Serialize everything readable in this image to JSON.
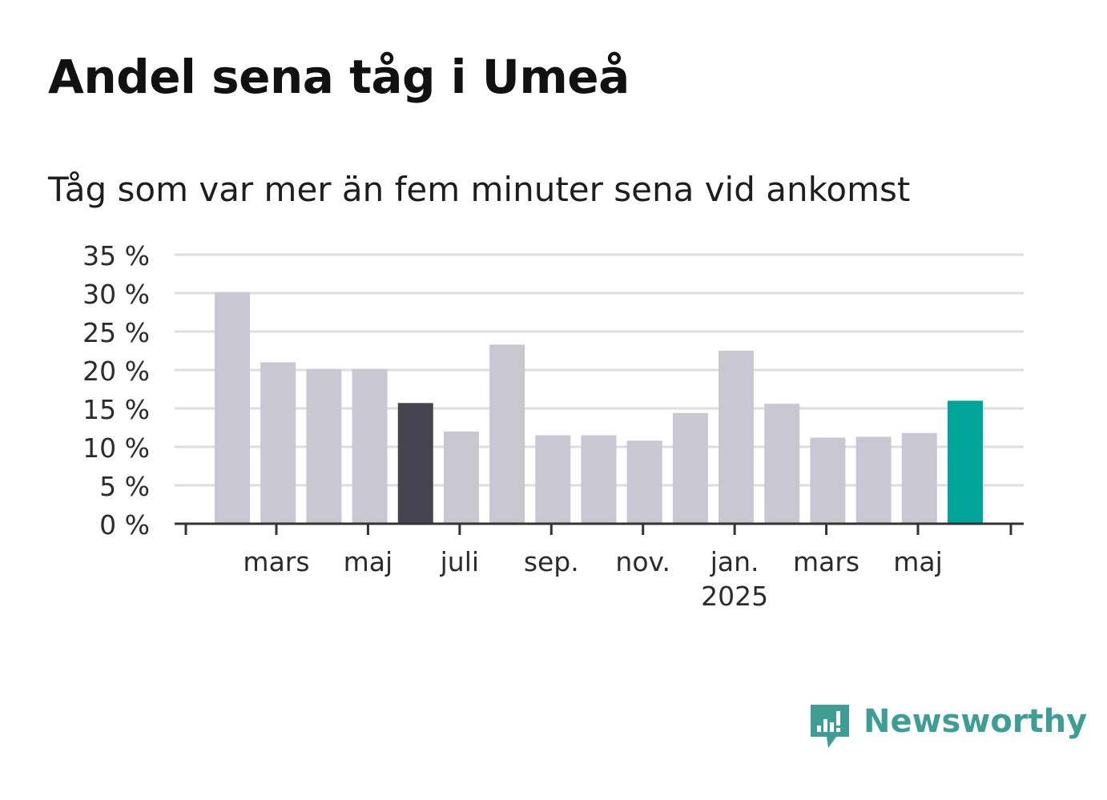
{
  "chart_data": {
    "type": "bar",
    "title": "Andel sena tåg i Umeå",
    "subtitle": "Tåg som var mer än fem minuter sena vid ankomst",
    "ylabel": "",
    "xlabel": "",
    "ylim": [
      0,
      35
    ],
    "y_ticks": [
      "0 %",
      "5 %",
      "10 %",
      "15 %",
      "20 %",
      "25 %",
      "30 %",
      "35 %"
    ],
    "x_tick_labels": [
      {
        "label": "mars",
        "year": ""
      },
      {
        "label": "maj",
        "year": ""
      },
      {
        "label": "juli",
        "year": ""
      },
      {
        "label": "sep.",
        "year": ""
      },
      {
        "label": "nov.",
        "year": ""
      },
      {
        "label": "jan.",
        "year": "2025"
      },
      {
        "label": "mars",
        "year": ""
      },
      {
        "label": "maj",
        "year": ""
      }
    ],
    "categories": [
      "2024-02",
      "2024-03",
      "2024-04",
      "2024-05",
      "2024-06",
      "2024-07",
      "2024-08",
      "2024-09",
      "2024-10",
      "2024-11",
      "2024-12",
      "2025-01",
      "2025-02",
      "2025-03",
      "2025-04",
      "2025-05",
      "2025-06"
    ],
    "values": [
      30.1,
      21.0,
      20.1,
      20.1,
      15.7,
      12.0,
      23.3,
      11.5,
      11.5,
      10.8,
      14.4,
      22.5,
      15.6,
      11.2,
      11.3,
      11.8,
      16.0
    ],
    "highlight": {
      "2024-06": "#44434f",
      "2025-06": "#00a59a"
    },
    "colors": {
      "bar": "#c8c7d2",
      "grid": "#dddddd",
      "axis": "#333333"
    },
    "grid": true
  },
  "logo": {
    "text": "Newsworthy",
    "color": "#3e9e96"
  }
}
